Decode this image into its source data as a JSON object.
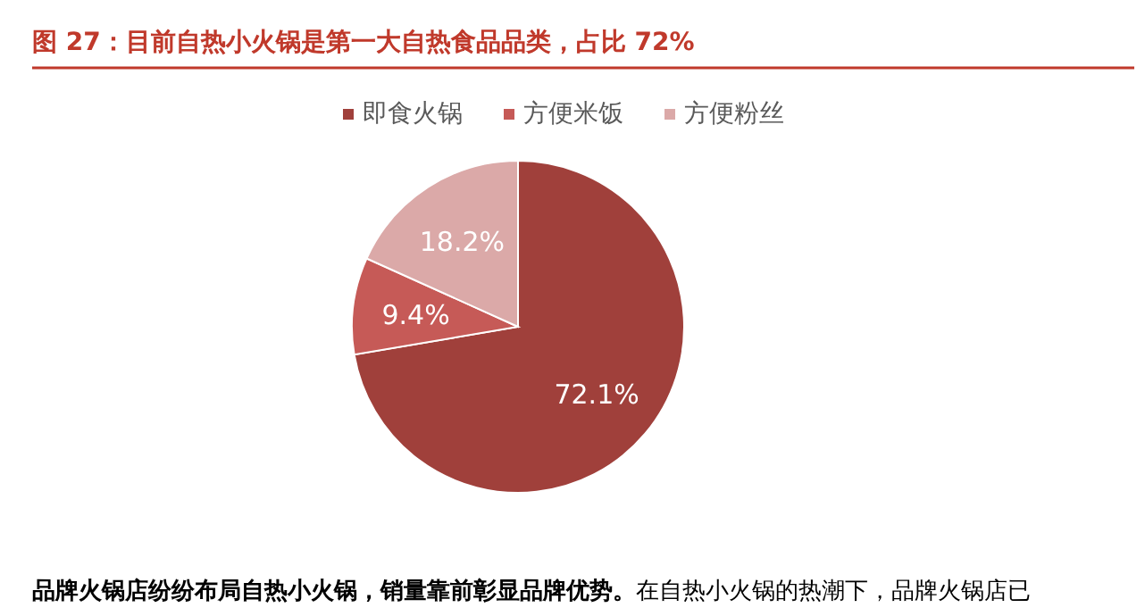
{
  "chart_data": {
    "type": "pie",
    "title": "图 27：目前自热小火锅是第一大自热食品品类，占比 72%",
    "categories": [
      "即食火锅",
      "方便米饭",
      "方便粉丝"
    ],
    "values": [
      72.1,
      9.4,
      18.2
    ],
    "colors": [
      "#a0403b",
      "#c65a57",
      "#dba9a8"
    ],
    "value_labels": [
      "72.1%",
      "9.4%",
      "18.2%"
    ],
    "legend": "top",
    "annotations": [
      "**品牌火锅店纷纷布局自热小火锅，销量靠前彰显品牌优势。**在自热小火锅的热潮下，品牌火锅店已"
    ]
  }
}
